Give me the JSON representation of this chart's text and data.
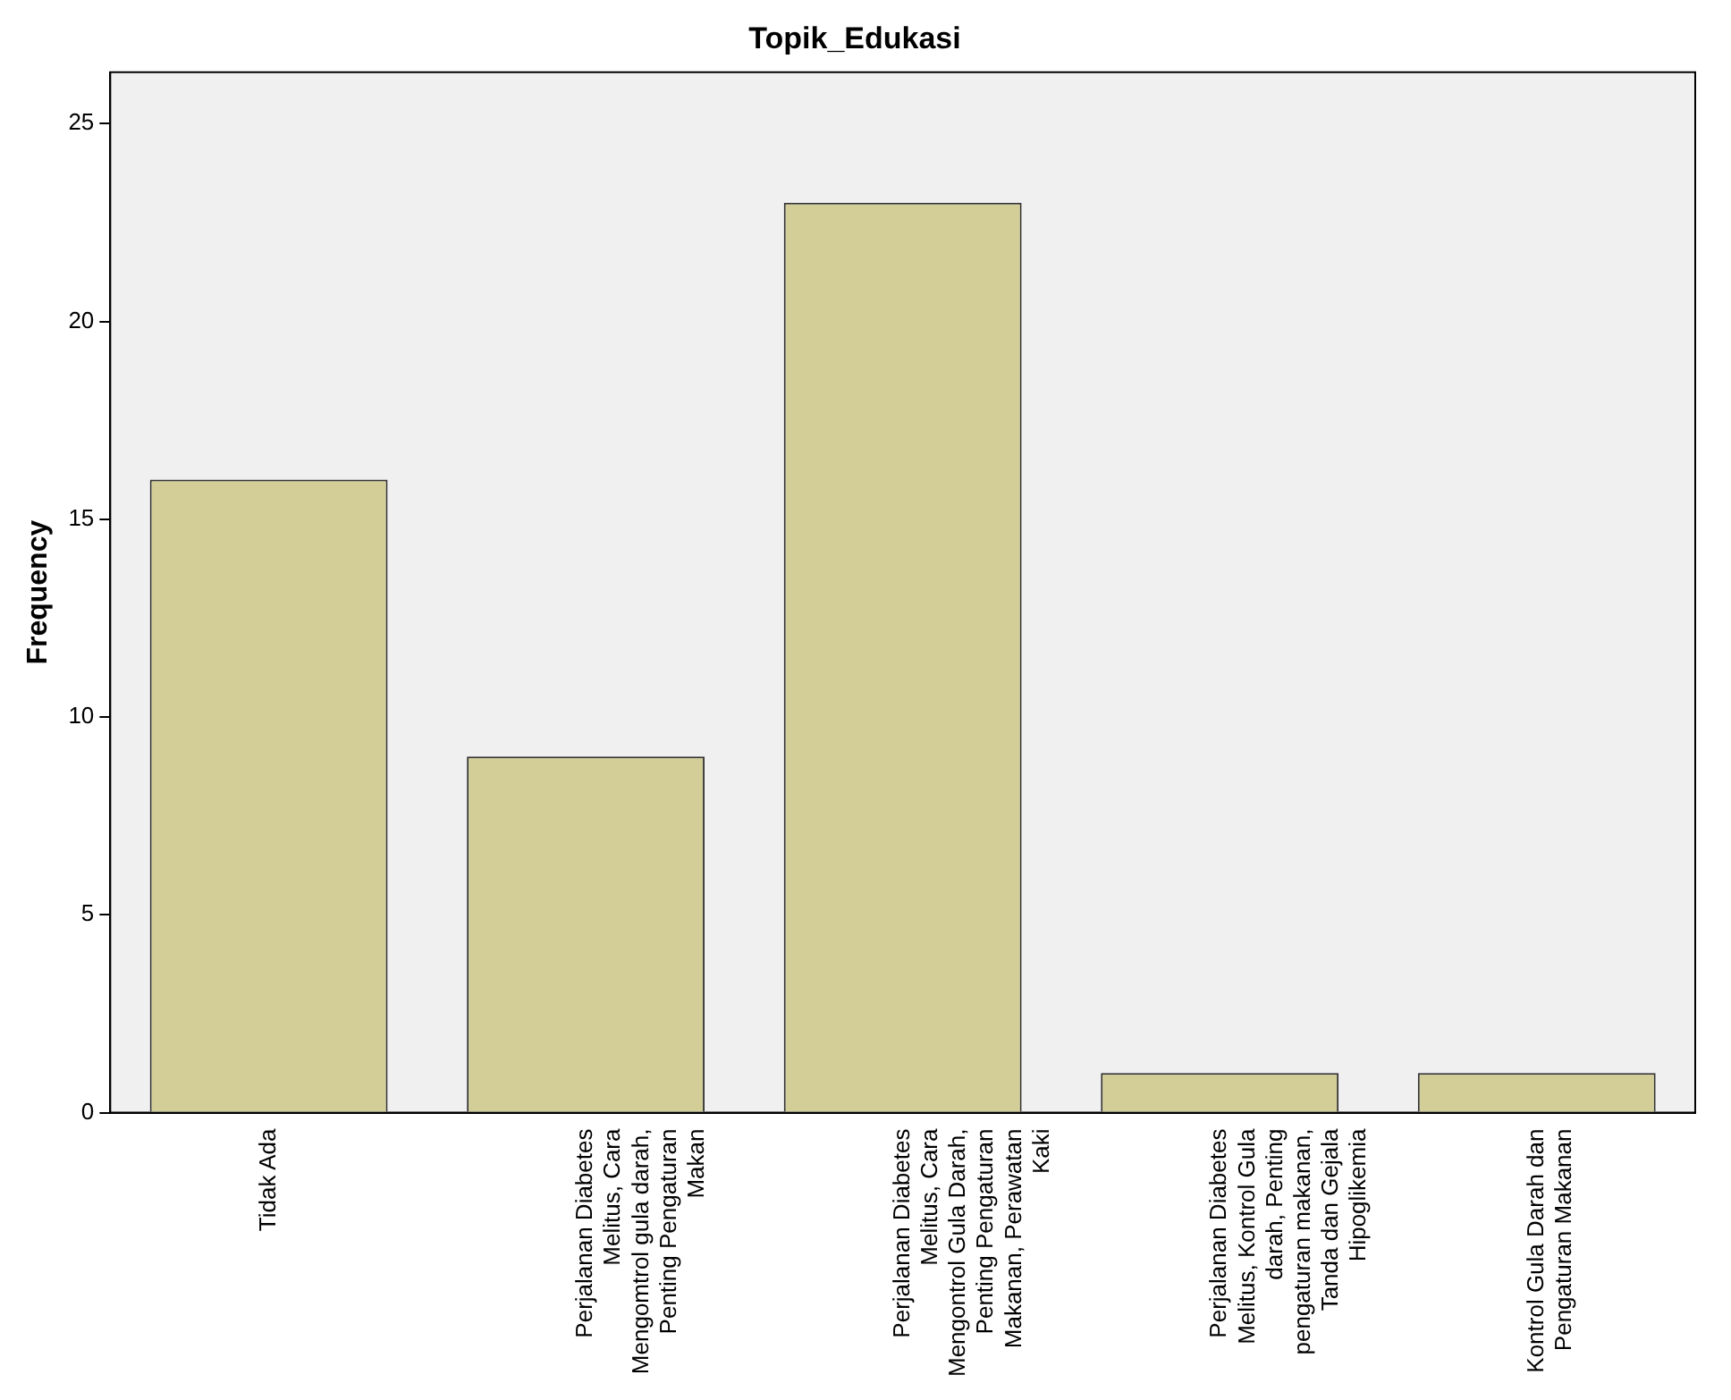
{
  "chart_data": {
    "type": "bar",
    "title": "Topik_Edukasi",
    "ylabel": "Frequency",
    "categories": [
      "Tidak Ada",
      "Perjalanan Diabetes Melitus, Cara Mengomtrol gula darah, Penting Pengaturan Makan",
      "Perjalanan Diabetes Melitus, Cara Mengontrol Gula Darah, Penting Pengaturan Makanan, Perawatan Kaki",
      "Perjalanan Diabetes Melitus, Kontrol Gula darah, Penting pengaturan makanan, Tanda dan Gejala Hipoglikemia",
      "Kontrol Gula Darah dan Pengaturan Makanan"
    ],
    "values": [
      16,
      9,
      23,
      1,
      1
    ],
    "color": "#d3ce97",
    "ylim": [
      0,
      26.3
    ],
    "yticks": [
      0,
      5,
      10,
      15,
      20,
      25
    ],
    "grid": false,
    "legend": false
  }
}
